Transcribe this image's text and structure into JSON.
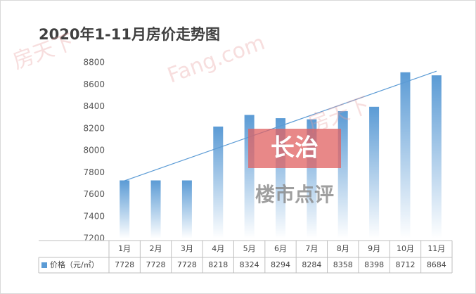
{
  "chart_data": {
    "type": "bar",
    "title": "2020年1-11月房价走势图",
    "categories": [
      "1月",
      "2月",
      "3月",
      "4月",
      "5月",
      "6月",
      "7月",
      "8月",
      "9月",
      "10月",
      "11月"
    ],
    "series": [
      {
        "name": "价格（元/㎡）",
        "color": "#5b9bd5",
        "values": [
          7728,
          7728,
          7728,
          8218,
          8324,
          8294,
          8284,
          8358,
          8398,
          8712,
          8684
        ]
      }
    ],
    "ylim": [
      7200,
      8800
    ],
    "yticks": [
      7200,
      7400,
      7600,
      7800,
      8000,
      8200,
      8400,
      8600,
      8800
    ],
    "trendline": true,
    "grid": false
  },
  "watermark": {
    "badge": "长治",
    "caption": "楼市点评",
    "brand": "房天下",
    "site": "Fang.com"
  }
}
